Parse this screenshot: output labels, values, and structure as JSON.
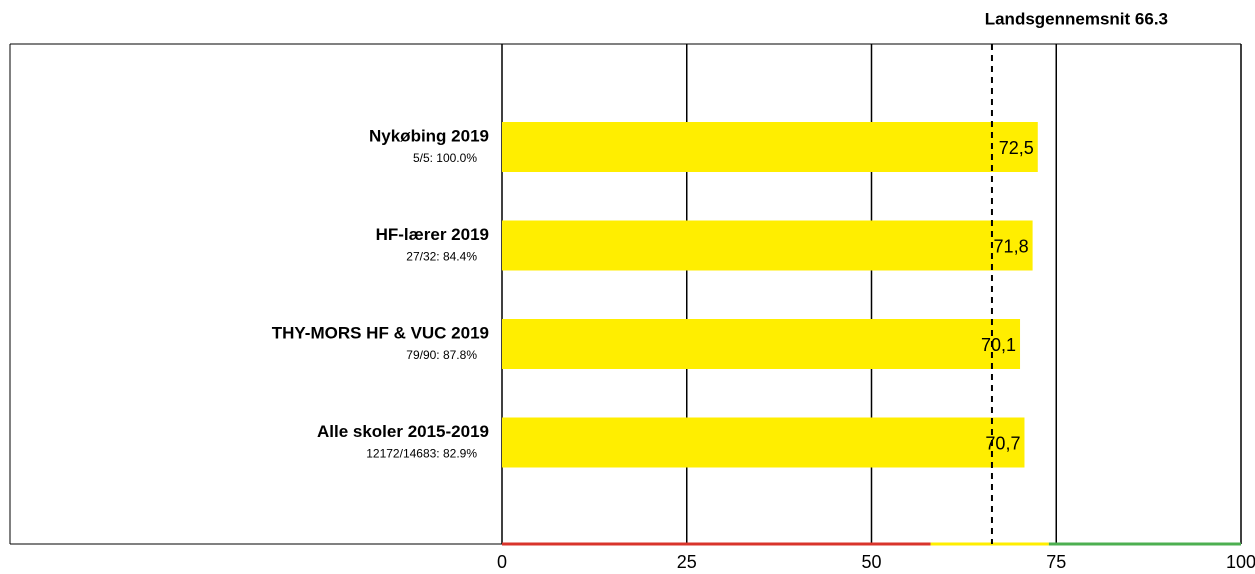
{
  "chart_data": {
    "type": "bar",
    "orientation": "horizontal",
    "categories": [
      "Nykøbing 2019",
      "HF-lærer 2019",
      "THY-MORS HF & VUC 2019",
      "Alle skoler 2015-2019"
    ],
    "sublabels": [
      "5/5: 100.0%",
      "27/32: 84.4%",
      "79/90: 87.8%",
      "12172/14683: 82.9%"
    ],
    "values": [
      72.5,
      71.8,
      70.1,
      70.7
    ],
    "value_labels": [
      "72,5",
      "71,8",
      "70,1",
      "70,7"
    ],
    "color": "#ffee00",
    "xlim": [
      0,
      100
    ],
    "xticks": [
      0,
      25,
      50,
      75,
      100
    ],
    "grid": true,
    "reference_line": {
      "value": 66.3,
      "label": "Landsgennemsnit 66.3"
    },
    "bands": [
      {
        "from": 0,
        "to": 58,
        "color": "#d9342b"
      },
      {
        "from": 58,
        "to": 74,
        "color": "#ffee00"
      },
      {
        "from": 74,
        "to": 100,
        "color": "#4caf50"
      }
    ]
  }
}
